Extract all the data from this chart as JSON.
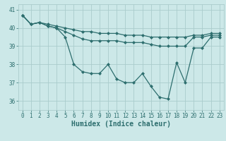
{
  "xlabel": "Humidex (Indice chaleur)",
  "ylabel": "",
  "background_color": "#cce8e8",
  "line_color": "#2d6e6e",
  "grid_color": "#aacccc",
  "ylim": [
    35.5,
    41.3
  ],
  "xlim": [
    -0.5,
    23.5
  ],
  "series": [
    [
      40.7,
      40.2,
      40.3,
      40.1,
      40.0,
      39.5,
      38.0,
      37.6,
      37.5,
      37.5,
      38.0,
      37.2,
      37.0,
      37.0,
      37.5,
      36.8,
      36.2,
      36.1,
      38.1,
      37.0,
      38.9,
      38.9,
      39.5,
      39.5
    ],
    [
      40.7,
      40.2,
      40.3,
      40.1,
      40.0,
      39.8,
      39.6,
      39.4,
      39.3,
      39.3,
      39.3,
      39.3,
      39.2,
      39.2,
      39.2,
      39.1,
      39.0,
      39.0,
      39.0,
      39.0,
      39.5,
      39.5,
      39.6,
      39.6
    ],
    [
      40.7,
      40.2,
      40.3,
      40.2,
      40.1,
      40.0,
      39.9,
      39.8,
      39.8,
      39.7,
      39.7,
      39.7,
      39.6,
      39.6,
      39.6,
      39.5,
      39.5,
      39.5,
      39.5,
      39.5,
      39.6,
      39.6,
      39.7,
      39.7
    ]
  ],
  "xticks": [
    0,
    1,
    2,
    3,
    4,
    5,
    6,
    7,
    8,
    9,
    10,
    11,
    12,
    13,
    14,
    15,
    16,
    17,
    18,
    19,
    20,
    21,
    22,
    23
  ],
  "yticks": [
    36,
    37,
    38,
    39,
    40,
    41
  ],
  "marker": "D",
  "markersize": 2,
  "linewidth": 0.9,
  "tick_fontsize": 5.5,
  "label_fontsize": 7
}
